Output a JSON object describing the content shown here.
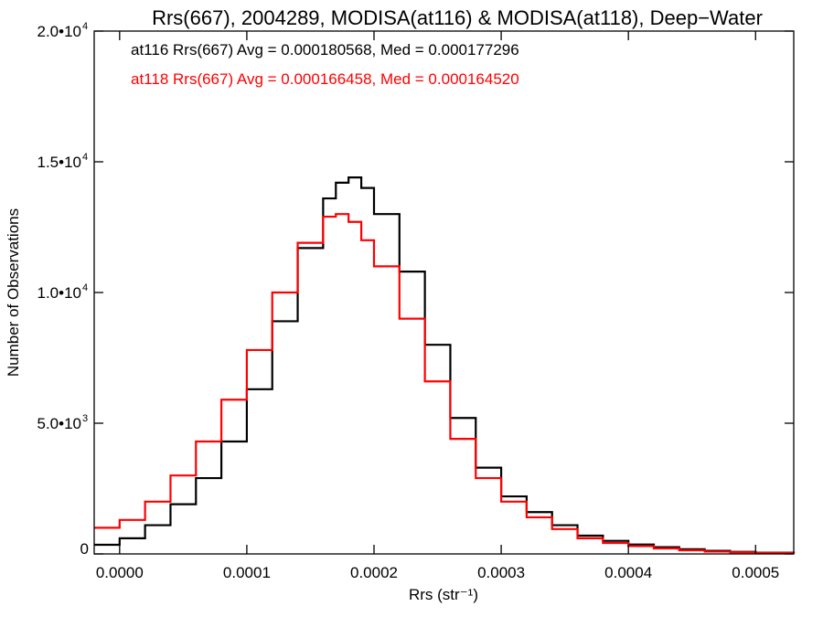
{
  "chart_data": {
    "type": "line",
    "title": "Rrs(667), 2004289, MODISA(at116) & MODISA(at118), Deep−Water",
    "xlabel": "Rrs (str⁻¹)",
    "ylabel": "Number of Observations",
    "xlim": [
      -2e-05,
      0.00053
    ],
    "ylim": [
      0,
      20000
    ],
    "x_ticks": [
      0.0,
      0.0001,
      0.0002,
      0.0003,
      0.0004,
      0.0005
    ],
    "x_tick_labels": [
      "0.0000",
      "0.0001",
      "0.0002",
      "0.0003",
      "0.0004",
      "0.0005"
    ],
    "y_ticks": [
      0,
      5000,
      10000,
      15000,
      20000
    ],
    "y_tick_labels": [
      {
        "base": "0",
        "exp": ""
      },
      {
        "base": "5.0•10",
        "exp": "3"
      },
      {
        "base": "1.0•10",
        "exp": "4"
      },
      {
        "base": "1.5•10",
        "exp": "4"
      },
      {
        "base": "2.0•10",
        "exp": "4"
      }
    ],
    "annotations": [
      "at116 Rrs(667) Avg = 0.000180568, Med = 0.000177296",
      "at118 Rrs(667) Avg = 0.000166458, Med = 0.000164520"
    ],
    "grid": false,
    "series": [
      {
        "color": "#000000",
        "x": [
          -2e-05,
          0.0,
          2e-05,
          4e-05,
          6e-05,
          8e-05,
          0.0001,
          0.00012,
          0.00014,
          0.00016,
          0.00017,
          0.00018,
          0.00019,
          0.0002,
          0.00022,
          0.00024,
          0.00026,
          0.00028,
          0.0003,
          0.00032,
          0.00034,
          0.00036,
          0.00038,
          0.0004,
          0.00042,
          0.00044,
          0.00046,
          0.00048,
          0.0005,
          0.00053
        ],
        "values": [
          350,
          600,
          1100,
          1900,
          2900,
          4300,
          6300,
          8900,
          11700,
          13600,
          14200,
          14400,
          14000,
          13000,
          10800,
          8000,
          5200,
          3300,
          2200,
          1600,
          1100,
          700,
          500,
          360,
          260,
          180,
          120,
          80,
          50,
          20
        ]
      },
      {
        "color": "#ff0000",
        "x": [
          -2e-05,
          0.0,
          2e-05,
          4e-05,
          6e-05,
          8e-05,
          0.0001,
          0.00012,
          0.00014,
          0.00016,
          0.00017,
          0.00018,
          0.00019,
          0.0002,
          0.00022,
          0.00024,
          0.00026,
          0.00028,
          0.0003,
          0.00032,
          0.00034,
          0.00036,
          0.00038,
          0.0004,
          0.00042,
          0.00044,
          0.00046,
          0.00048,
          0.0005,
          0.00053
        ],
        "values": [
          1000,
          1300,
          2000,
          3000,
          4300,
          5900,
          7800,
          10000,
          11900,
          12900,
          13000,
          12700,
          12000,
          11000,
          9000,
          6600,
          4400,
          2900,
          2000,
          1400,
          950,
          600,
          420,
          300,
          210,
          140,
          90,
          60,
          40,
          15
        ]
      }
    ]
  }
}
